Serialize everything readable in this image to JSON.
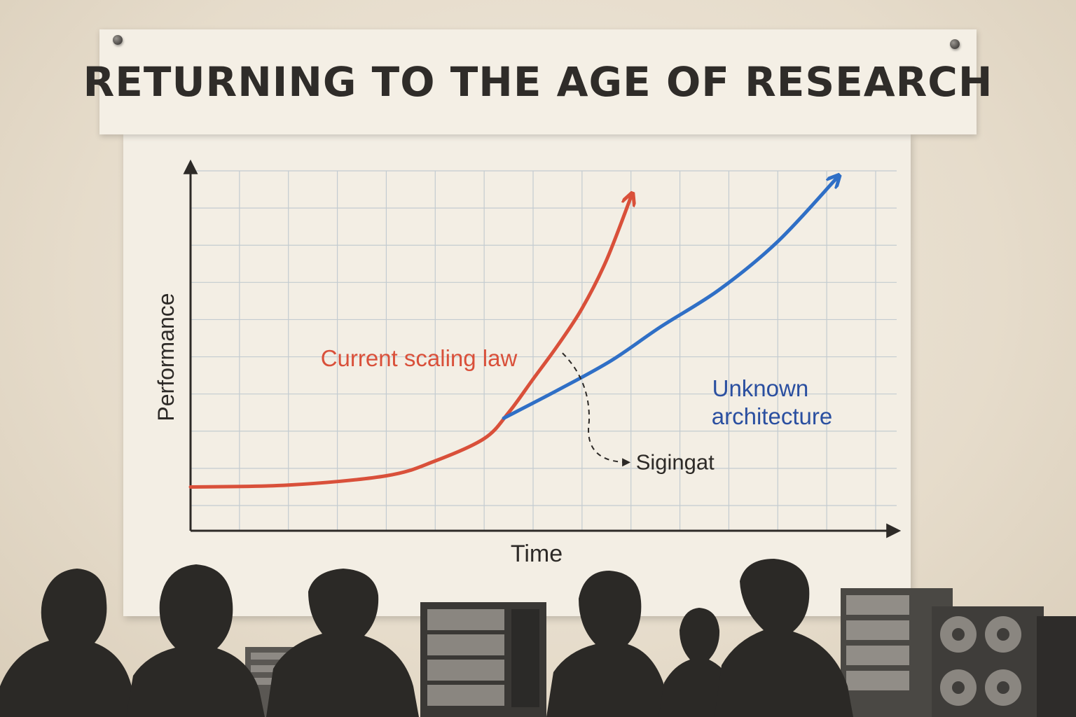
{
  "banner": {
    "title": "RETURNING TO THE AGE OF RESEARCH"
  },
  "colors": {
    "current_scaling_law": "#d9503a",
    "unknown_architecture": "#2f6fc6",
    "unknown_architecture_label": "#2a4fa0",
    "axes": "#2d2a27",
    "grid": "#c3cbd0",
    "annotation": "#2d2a27"
  },
  "chart_data": {
    "type": "line",
    "title": "",
    "xlabel": "Time",
    "ylabel": "Performance",
    "xlim": [
      0,
      14
    ],
    "ylim": [
      0,
      9
    ],
    "grid": true,
    "axis_arrows": true,
    "tick_labels": false,
    "series": [
      {
        "name": "Current scaling law",
        "color_key": "current_scaling_law",
        "arrow_end": true,
        "x": [
          0,
          2,
          4,
          5,
          6,
          6.5,
          7,
          7.5,
          8,
          8.5,
          9
        ],
        "y": [
          0.5,
          0.55,
          0.8,
          1.2,
          1.8,
          2.5,
          3.4,
          4.3,
          5.3,
          6.6,
          8.3
        ]
      },
      {
        "name": "Unknown architecture",
        "color_key": "unknown_architecture",
        "arrow_end": true,
        "x": [
          6.4,
          7.5,
          8.6,
          9.6,
          10.8,
          12,
          13.2
        ],
        "y": [
          2.35,
          3.1,
          3.9,
          4.8,
          5.8,
          7.1,
          8.8
        ]
      }
    ],
    "annotations": [
      {
        "text": "Sigingat",
        "x": 9.1,
        "y": 1.2,
        "from_x": 7.6,
        "from_y": 4.1,
        "dashed_arrow": true
      }
    ]
  }
}
